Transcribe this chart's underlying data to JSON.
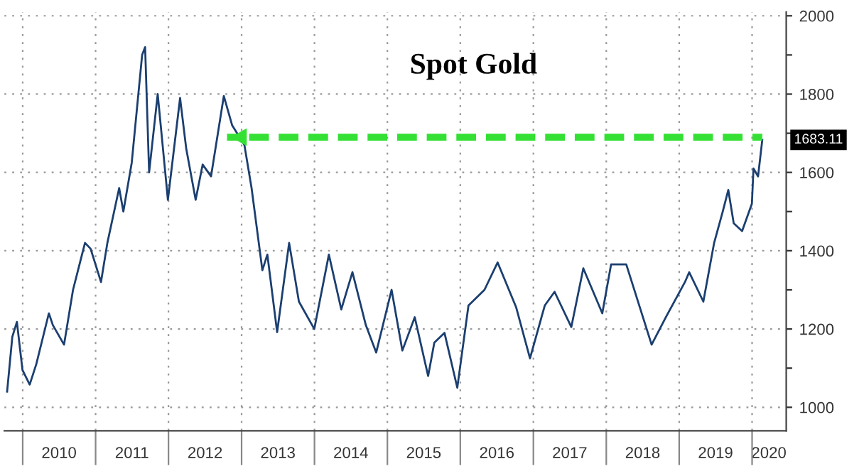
{
  "chart_data": {
    "type": "line",
    "title": "Spot Gold",
    "series": [
      {
        "color": "#1b3f70",
        "x": [
          "2009-10-15",
          "2009-11-10",
          "2009-12-03",
          "2009-12-31",
          "2010-02-05",
          "2010-03-10",
          "2010-05-12",
          "2010-06-01",
          "2010-07-27",
          "2010-09-10",
          "2010-10-15",
          "2010-11-09",
          "2010-12-07",
          "2011-01-28",
          "2011-03-01",
          "2011-04-29",
          "2011-05-20",
          "2011-07-01",
          "2011-08-22",
          "2011-09-06",
          "2011-09-26",
          "2011-11-08",
          "2011-12-29",
          "2012-02-28",
          "2012-03-30",
          "2012-05-16",
          "2012-06-20",
          "2012-08-01",
          "2012-10-04",
          "2012-11-15",
          "2013-01-15",
          "2013-02-20",
          "2013-04-15",
          "2013-05-10",
          "2013-06-28",
          "2013-08-27",
          "2013-10-15",
          "2013-12-31",
          "2014-03-14",
          "2014-05-15",
          "2014-07-10",
          "2014-09-15",
          "2014-11-06",
          "2015-01-22",
          "2015-03-17",
          "2015-05-18",
          "2015-07-24",
          "2015-08-24",
          "2015-10-14",
          "2015-12-17",
          "2016-02-11",
          "2016-05-01",
          "2016-07-06",
          "2016-10-07",
          "2016-12-15",
          "2017-02-27",
          "2017-04-17",
          "2017-07-10",
          "2017-09-08",
          "2017-12-12",
          "2018-01-25",
          "2018-04-11",
          "2018-08-16",
          "2018-10-26",
          "2019-01-30",
          "2019-02-20",
          "2019-05-02",
          "2019-06-25",
          "2019-08-07",
          "2019-09-04",
          "2019-10-01",
          "2019-11-12",
          "2019-12-31",
          "2020-01-08",
          "2020-01-31",
          "2020-02-21"
        ],
        "values": [
          1040,
          1180,
          1218,
          1095,
          1058,
          1110,
          1240,
          1210,
          1160,
          1300,
          1370,
          1420,
          1405,
          1320,
          1420,
          1560,
          1500,
          1625,
          1900,
          1920,
          1600,
          1800,
          1530,
          1790,
          1660,
          1530,
          1620,
          1590,
          1795,
          1720,
          1670,
          1560,
          1350,
          1390,
          1192,
          1420,
          1270,
          1200,
          1390,
          1250,
          1345,
          1210,
          1140,
          1300,
          1145,
          1230,
          1080,
          1165,
          1190,
          1050,
          1260,
          1300,
          1370,
          1255,
          1125,
          1260,
          1295,
          1205,
          1355,
          1240,
          1365,
          1365,
          1160,
          1230,
          1320,
          1345,
          1270,
          1420,
          1500,
          1555,
          1470,
          1450,
          1520,
          1610,
          1590,
          1683
        ]
      },
      {
        "type": "line",
        "color": "#33e033",
        "line_style": "dashed",
        "x": [
          "2012-10-20",
          "2020-02-21"
        ],
        "values": [
          1690,
          1690
        ]
      }
    ],
    "annotations": [
      {
        "text": "1683.11",
        "x": "2020-02-21",
        "y": 1683.11
      }
    ],
    "xlim": [
      "2009-10-01",
      "2020-06-20"
    ],
    "xticks": [
      {
        "value": "2010-01-01",
        "label": null
      },
      {
        "value": "2010-07-02",
        "label": "2010"
      },
      {
        "value": "2011-01-01",
        "label": null
      },
      {
        "value": "2011-07-02",
        "label": "2011"
      },
      {
        "value": "2012-01-01",
        "label": null
      },
      {
        "value": "2012-07-02",
        "label": "2012"
      },
      {
        "value": "2013-01-01",
        "label": null
      },
      {
        "value": "2013-07-02",
        "label": "2013"
      },
      {
        "value": "2014-01-01",
        "label": null
      },
      {
        "value": "2014-07-02",
        "label": "2014"
      },
      {
        "value": "2015-01-01",
        "label": null
      },
      {
        "value": "2015-07-02",
        "label": "2015"
      },
      {
        "value": "2016-01-01",
        "label": null
      },
      {
        "value": "2016-07-02",
        "label": "2016"
      },
      {
        "value": "2017-01-01",
        "label": null
      },
      {
        "value": "2017-07-02",
        "label": "2017"
      },
      {
        "value": "2018-01-01",
        "label": null
      },
      {
        "value": "2018-07-02",
        "label": "2018"
      },
      {
        "value": "2019-01-01",
        "label": null
      },
      {
        "value": "2019-07-02",
        "label": "2019"
      },
      {
        "value": "2020-01-01",
        "label": null
      },
      {
        "value": "2020-03-25",
        "label": "2020"
      }
    ],
    "ylim": [
      940,
      2010
    ],
    "yticks": [
      1000,
      {
        "value": 1100,
        "label": null
      },
      1200,
      {
        "value": 1300,
        "label": null
      },
      1400,
      {
        "value": 1500,
        "label": null
      },
      1600,
      {
        "value": 1700,
        "label": null
      },
      1800,
      {
        "value": 1900,
        "label": null
      },
      2000
    ],
    "grid": true,
    "marker": "none",
    "line_style": "solid",
    "legend": false
  }
}
